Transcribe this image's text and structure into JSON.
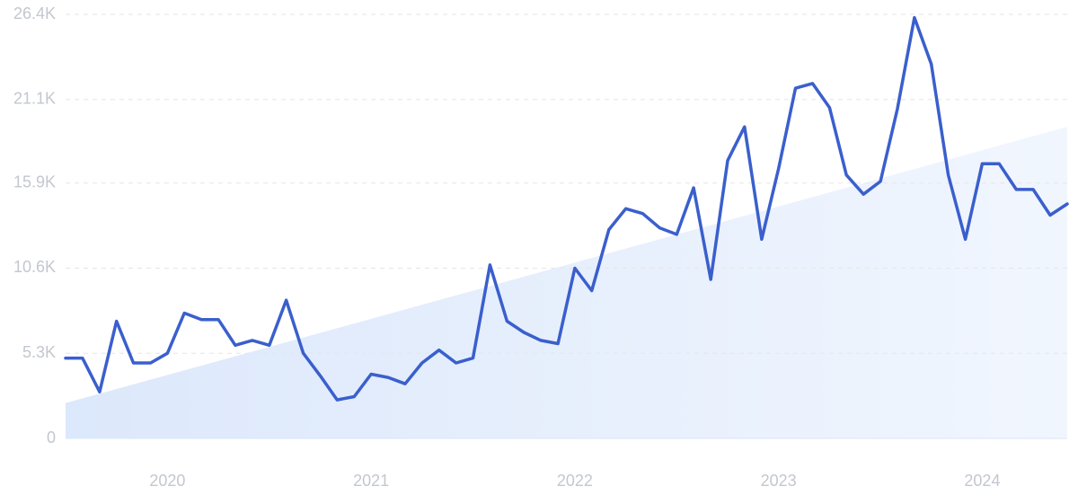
{
  "chart_data": {
    "type": "line",
    "x": [
      2019.5,
      2019.583,
      2019.667,
      2019.75,
      2019.833,
      2019.917,
      2020,
      2020.083,
      2020.167,
      2020.25,
      2020.333,
      2020.417,
      2020.5,
      2020.583,
      2020.667,
      2020.75,
      2020.833,
      2020.917,
      2021,
      2021.083,
      2021.167,
      2021.25,
      2021.333,
      2021.417,
      2021.5,
      2021.583,
      2021.667,
      2021.75,
      2021.833,
      2021.917,
      2022,
      2022.083,
      2022.167,
      2022.25,
      2022.333,
      2022.417,
      2022.5,
      2022.583,
      2022.667,
      2022.75,
      2022.833,
      2022.917,
      2023,
      2023.083,
      2023.167,
      2023.25,
      2023.333,
      2023.417,
      2023.5,
      2023.583,
      2023.667,
      2023.75,
      2023.833,
      2023.917,
      2024,
      2024.083,
      2024.167,
      2024.25,
      2024.333,
      2024.417
    ],
    "series": [
      {
        "color": "#3a5fcd",
        "values": [
          5000,
          5000,
          2900,
          7300,
          4700,
          4700,
          5300,
          7800,
          7400,
          7400,
          5800,
          6100,
          5800,
          8600,
          5300,
          3900,
          2400,
          2600,
          4000,
          3800,
          3400,
          4700,
          5500,
          4700,
          5000,
          10800,
          7300,
          6600,
          6100,
          5900,
          10600,
          9200,
          13000,
          14300,
          14000,
          13100,
          12700,
          15600,
          9900,
          17300,
          19400,
          12400,
          16800,
          21800,
          22100,
          20600,
          16400,
          15200,
          16000,
          20500,
          26200,
          23300,
          16400,
          12400,
          17100,
          17100,
          15500,
          15500,
          13900,
          14600
        ]
      }
    ],
    "trend": {
      "color": "#dfeafb",
      "values": [
        2200,
        19400
      ]
    },
    "xlim": [
      2019.5,
      2024.417
    ],
    "xticks": [
      2020,
      2021,
      2022,
      2023,
      2024
    ],
    "ylim": [
      0,
      26400
    ],
    "yticks": [
      0,
      {
        "value": 5300,
        "label": "5.3K"
      },
      {
        "value": 10600,
        "label": "10.6K"
      },
      {
        "value": 15900,
        "label": "15.9K"
      },
      {
        "value": 21100,
        "label": "21.1K"
      },
      {
        "value": 26400,
        "label": "26.4K"
      }
    ],
    "grid": true
  }
}
